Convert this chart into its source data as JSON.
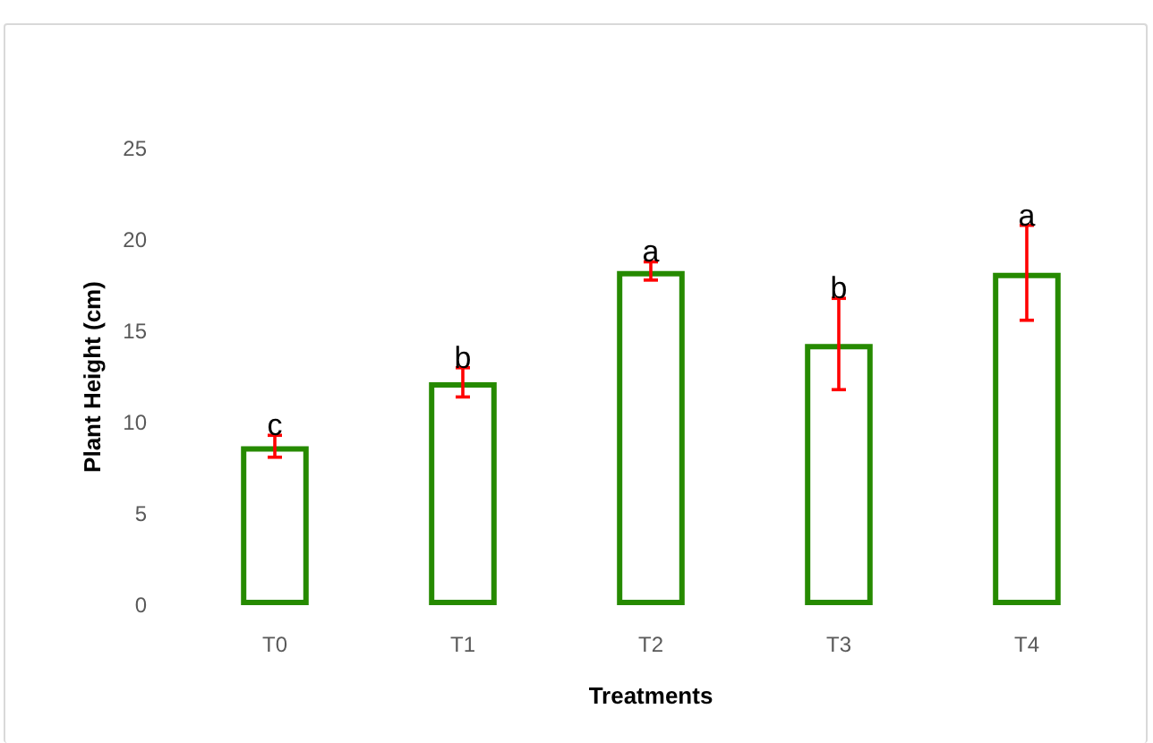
{
  "chart_data": {
    "type": "bar",
    "xlabel": "Treatments",
    "ylabel": "Plant Height (cm)",
    "categories": [
      "T0",
      "T1",
      "T2",
      "T3",
      "T4"
    ],
    "values": [
      8.7,
      12.2,
      18.3,
      14.3,
      18.2
    ],
    "color": "#268a00",
    "errors": [
      0.6,
      0.8,
      0.5,
      2.5,
      2.6
    ],
    "ylim": [
      0,
      25
    ],
    "yticks": [
      0,
      5,
      10,
      15,
      20,
      25
    ],
    "grid": false,
    "annotations": [
      {
        "text": "c",
        "x": "T0",
        "y": 9.3
      },
      {
        "text": "b",
        "x": "T1",
        "y": 13.0
      },
      {
        "text": "a",
        "x": "T2",
        "y": 18.8
      },
      {
        "text": "b",
        "x": "T3",
        "y": 16.8
      },
      {
        "text": "a",
        "x": "T4",
        "y": 20.8
      }
    ]
  }
}
